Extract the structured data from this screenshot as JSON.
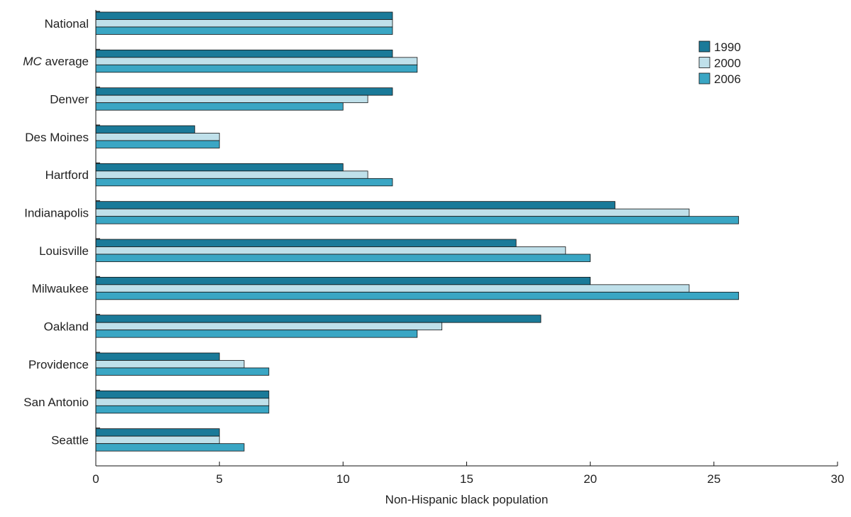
{
  "chart_data": {
    "type": "bar",
    "orientation": "horizontal",
    "categories": [
      "National",
      "MC average",
      "Denver",
      "Des Moines",
      "Hartford",
      "Indianapolis",
      "Louisville",
      "Milwaukee",
      "Oakland",
      "Providence",
      "San Antonio",
      "Seattle"
    ],
    "category_italic_prefix": {
      "MC average": "MC"
    },
    "series": [
      {
        "name": "1990",
        "color": "#1a7a99",
        "values": [
          12,
          12,
          12,
          4,
          10,
          21,
          17,
          20,
          18,
          5,
          7,
          5
        ]
      },
      {
        "name": "2000",
        "color": "#bfe0ea",
        "values": [
          12,
          13,
          11,
          5,
          11,
          24,
          19,
          24,
          14,
          6,
          7,
          5
        ]
      },
      {
        "name": "2006",
        "color": "#3aa6c4",
        "values": [
          12,
          13,
          10,
          5,
          12,
          26,
          20,
          26,
          13,
          7,
          7,
          6
        ]
      }
    ],
    "xlabel": "Non-Hispanic black population",
    "ylabel": "",
    "xlim": [
      0,
      30
    ],
    "xticks": [
      "0",
      "5",
      "10",
      "15",
      "20",
      "25",
      "30"
    ],
    "grid": false,
    "legend_position": "top-right"
  }
}
